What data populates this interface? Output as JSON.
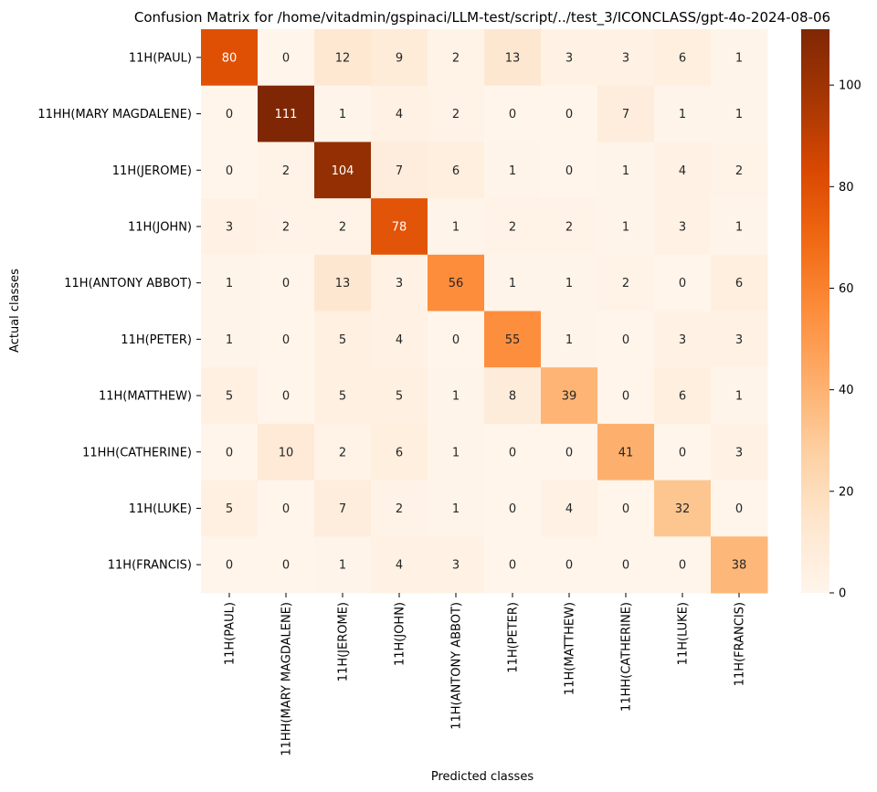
{
  "chart_data": {
    "type": "heatmap",
    "title": "Confusion Matrix for /home/vitadmin/gspinaci/LLM-test/script/../test_3/ICONCLASS/gpt-4o-2024-08-06",
    "xlabel": "Predicted classes",
    "ylabel": "Actual classes",
    "row_labels": [
      "11H(PAUL)",
      "11HH(MARY MAGDALENE)",
      "11H(JEROME)",
      "11H(JOHN)",
      "11H(ANTONY ABBOT)",
      "11H(PETER)",
      "11H(MATTHEW)",
      "11HH(CATHERINE)",
      "11H(LUKE)",
      "11H(FRANCIS)"
    ],
    "col_labels": [
      "11H(PAUL)",
      "11HH(MARY MAGDALENE)",
      "11H(JEROME)",
      "11H(JOHN)",
      "11H(ANTONY ABBOT)",
      "11H(PETER)",
      "11H(MATTHEW)",
      "11HH(CATHERINE)",
      "11H(LUKE)",
      "11H(FRANCIS)"
    ],
    "values": [
      [
        80,
        0,
        12,
        9,
        2,
        13,
        3,
        3,
        6,
        1
      ],
      [
        0,
        111,
        1,
        4,
        2,
        0,
        0,
        7,
        1,
        1
      ],
      [
        0,
        2,
        104,
        7,
        6,
        1,
        0,
        1,
        4,
        2
      ],
      [
        3,
        2,
        2,
        78,
        1,
        2,
        2,
        1,
        3,
        1
      ],
      [
        1,
        0,
        13,
        3,
        56,
        1,
        1,
        2,
        0,
        6
      ],
      [
        1,
        0,
        5,
        4,
        0,
        55,
        1,
        0,
        3,
        3
      ],
      [
        5,
        0,
        5,
        5,
        1,
        8,
        39,
        0,
        6,
        1
      ],
      [
        0,
        10,
        2,
        6,
        1,
        0,
        0,
        41,
        0,
        3
      ],
      [
        5,
        0,
        7,
        2,
        1,
        0,
        4,
        0,
        32,
        0
      ],
      [
        0,
        0,
        1,
        4,
        3,
        0,
        0,
        0,
        0,
        38
      ]
    ],
    "colormap": "Oranges",
    "vmin": 0,
    "vmax": 111,
    "colorbar_ticks": [
      0,
      20,
      40,
      60,
      80,
      100
    ],
    "grid": false
  }
}
